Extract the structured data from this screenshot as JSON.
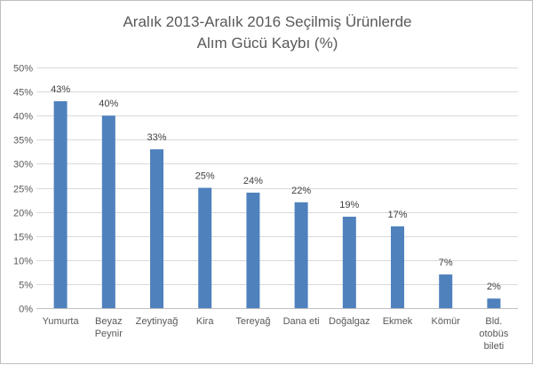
{
  "chart_data": {
    "type": "bar",
    "title_lines": [
      "Aralık 2013-Aralık 2016 Seçilmiş Ürünlerde",
      "Alım Gücü Kaybı (%)"
    ],
    "categories": [
      [
        "Yumurta"
      ],
      [
        "Beyaz",
        "Peynir"
      ],
      [
        "Zeytinyağ"
      ],
      [
        "Kira"
      ],
      [
        "Tereyağ"
      ],
      [
        "Dana eti"
      ],
      [
        "Doğalgaz"
      ],
      [
        "Ekmek"
      ],
      [
        "Kömür"
      ],
      [
        "Bld.",
        "otobüs",
        "bileti"
      ]
    ],
    "values": [
      43,
      40,
      33,
      25,
      24,
      22,
      19,
      17,
      7,
      2
    ],
    "data_labels": [
      "43%",
      "40%",
      "33%",
      "25%",
      "24%",
      "22%",
      "19%",
      "17%",
      "7%",
      "2%"
    ],
    "ylim": [
      0,
      50
    ],
    "yticks": [
      0,
      5,
      10,
      15,
      20,
      25,
      30,
      35,
      40,
      45,
      50
    ],
    "ytick_labels": [
      "0%",
      "5%",
      "10%",
      "15%",
      "20%",
      "25%",
      "30%",
      "35%",
      "40%",
      "45%",
      "50%"
    ],
    "grid": true,
    "legend": "none",
    "bar_color": "#4f81bd",
    "grid_color": "#d9d9d9"
  }
}
